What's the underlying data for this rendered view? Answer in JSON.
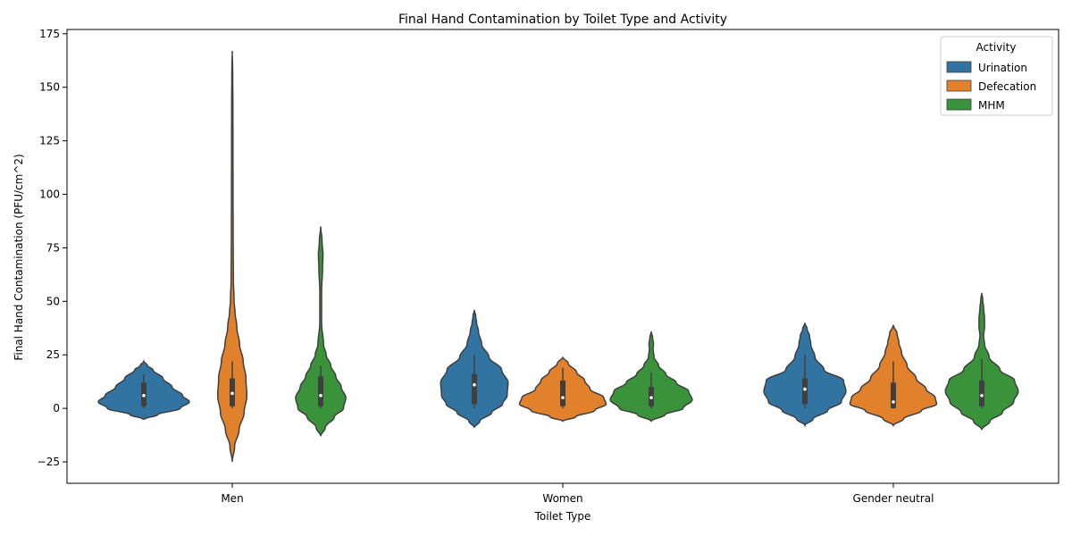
{
  "chart_data": {
    "type": "violin",
    "title": "Final Hand Contamination by Toilet Type and Activity",
    "xlabel": "Toilet Type",
    "ylabel": "Final Hand Contamination (PFU/cm^2)",
    "categories": [
      "Men",
      "Women",
      "Gender neutral"
    ],
    "ylim": [
      -35,
      177
    ],
    "yticks": [
      -25,
      0,
      25,
      50,
      75,
      100,
      125,
      150,
      175
    ],
    "grid": false,
    "legend": {
      "title": "Activity",
      "placement": "top-right",
      "entries": [
        "Urination",
        "Defecation",
        "MHM"
      ]
    },
    "series": [
      {
        "name": "Urination",
        "color": "#3274a1",
        "violins": [
          {
            "category": "Men",
            "median": 6,
            "q1": 1,
            "q3": 12,
            "whisker_low": 0,
            "whisker_high": 16,
            "profile": [
              [
                -5,
                0.02
              ],
              [
                -3,
                0.3
              ],
              [
                0,
                0.8
              ],
              [
                3,
                1.0
              ],
              [
                6,
                0.85
              ],
              [
                10,
                0.62
              ],
              [
                14,
                0.42
              ],
              [
                18,
                0.2
              ],
              [
                20,
                0.08
              ],
              [
                22,
                0.0
              ]
            ]
          },
          {
            "category": "Women",
            "median": 11,
            "q1": 2,
            "q3": 16,
            "whisker_low": 0,
            "whisker_high": 25,
            "profile": [
              [
                -9,
                0.0
              ],
              [
                -6,
                0.12
              ],
              [
                -2,
                0.38
              ],
              [
                2,
                0.62
              ],
              [
                6,
                0.72
              ],
              [
                12,
                0.74
              ],
              [
                18,
                0.6
              ],
              [
                24,
                0.32
              ],
              [
                30,
                0.16
              ],
              [
                36,
                0.09
              ],
              [
                40,
                0.05
              ],
              [
                43,
                0.03
              ],
              [
                46,
                0.0
              ]
            ]
          },
          {
            "category": "Gender neutral",
            "median": 9,
            "q1": 2,
            "q3": 14,
            "whisker_low": 0,
            "whisker_high": 25,
            "profile": [
              [
                -8,
                0.0
              ],
              [
                -5,
                0.18
              ],
              [
                -1,
                0.5
              ],
              [
                3,
                0.8
              ],
              [
                8,
                0.9
              ],
              [
                13,
                0.85
              ],
              [
                18,
                0.42
              ],
              [
                24,
                0.22
              ],
              [
                30,
                0.13
              ],
              [
                34,
                0.1
              ],
              [
                37,
                0.05
              ],
              [
                40,
                0.0
              ]
            ]
          }
        ]
      },
      {
        "name": "Defecation",
        "color": "#e1812c",
        "violins": [
          {
            "category": "Men",
            "median": 7,
            "q1": 1,
            "q3": 14,
            "whisker_low": 0,
            "whisker_high": 22,
            "profile": [
              [
                -25,
                0.0
              ],
              [
                -18,
                0.05
              ],
              [
                -10,
                0.15
              ],
              [
                -2,
                0.26
              ],
              [
                6,
                0.32
              ],
              [
                14,
                0.3
              ],
              [
                22,
                0.24
              ],
              [
                30,
                0.16
              ],
              [
                38,
                0.1
              ],
              [
                45,
                0.06
              ],
              [
                50,
                0.04
              ],
              [
                60,
                0.025
              ],
              [
                80,
                0.02
              ],
              [
                100,
                0.018
              ],
              [
                120,
                0.016
              ],
              [
                140,
                0.014
              ],
              [
                155,
                0.01
              ],
              [
                167,
                0.0
              ]
            ]
          },
          {
            "category": "Women",
            "median": 5,
            "q1": 1,
            "q3": 13,
            "whisker_low": 0,
            "whisker_high": 19,
            "profile": [
              [
                -6,
                0.0
              ],
              [
                -4,
                0.28
              ],
              [
                -1,
                0.7
              ],
              [
                2,
                0.95
              ],
              [
                5,
                0.9
              ],
              [
                9,
                0.6
              ],
              [
                13,
                0.48
              ],
              [
                17,
                0.3
              ],
              [
                21,
                0.12
              ],
              [
                24,
                0.0
              ]
            ]
          },
          {
            "category": "Gender neutral",
            "median": 3,
            "q1": 0,
            "q3": 12,
            "whisker_low": 0,
            "whisker_high": 22,
            "profile": [
              [
                -8,
                0.0
              ],
              [
                -5,
                0.22
              ],
              [
                -1,
                0.62
              ],
              [
                2,
                0.95
              ],
              [
                5,
                0.92
              ],
              [
                9,
                0.72
              ],
              [
                14,
                0.5
              ],
              [
                20,
                0.3
              ],
              [
                26,
                0.18
              ],
              [
                31,
                0.12
              ],
              [
                35,
                0.08
              ],
              [
                39,
                0.0
              ]
            ]
          }
        ]
      },
      {
        "name": "MHM",
        "color": "#3a923a",
        "violins": [
          {
            "category": "Men",
            "median": 6,
            "q1": 1,
            "q3": 15,
            "whisker_low": 0,
            "whisker_high": 20,
            "profile": [
              [
                -13,
                0.0
              ],
              [
                -9,
                0.1
              ],
              [
                -4,
                0.3
              ],
              [
                0,
                0.5
              ],
              [
                5,
                0.55
              ],
              [
                10,
                0.45
              ],
              [
                15,
                0.33
              ],
              [
                20,
                0.22
              ],
              [
                25,
                0.12
              ],
              [
                30,
                0.06
              ],
              [
                40,
                0.02
              ],
              [
                55,
                0.02
              ],
              [
                65,
                0.04
              ],
              [
                72,
                0.05
              ],
              [
                78,
                0.03
              ],
              [
                85,
                0.0
              ]
            ]
          },
          {
            "category": "Women",
            "median": 5,
            "q1": 1,
            "q3": 10,
            "whisker_low": 0,
            "whisker_high": 17,
            "profile": [
              [
                -6,
                0.0
              ],
              [
                -3,
                0.3
              ],
              [
                0,
                0.7
              ],
              [
                4,
                0.9
              ],
              [
                8,
                0.82
              ],
              [
                12,
                0.55
              ],
              [
                16,
                0.32
              ],
              [
                20,
                0.16
              ],
              [
                24,
                0.06
              ],
              [
                28,
                0.04
              ],
              [
                30,
                0.05
              ],
              [
                33,
                0.03
              ],
              [
                36,
                0.0
              ]
            ]
          },
          {
            "category": "Gender neutral",
            "median": 6,
            "q1": 1,
            "q3": 13,
            "whisker_low": 0,
            "whisker_high": 23,
            "profile": [
              [
                -10,
                0.0
              ],
              [
                -6,
                0.18
              ],
              [
                -2,
                0.45
              ],
              [
                3,
                0.7
              ],
              [
                8,
                0.8
              ],
              [
                13,
                0.72
              ],
              [
                18,
                0.4
              ],
              [
                24,
                0.16
              ],
              [
                30,
                0.06
              ],
              [
                34,
                0.04
              ],
              [
                38,
                0.06
              ],
              [
                42,
                0.06
              ],
              [
                47,
                0.04
              ],
              [
                51,
                0.02
              ],
              [
                54,
                0.0
              ]
            ]
          }
        ]
      }
    ]
  }
}
